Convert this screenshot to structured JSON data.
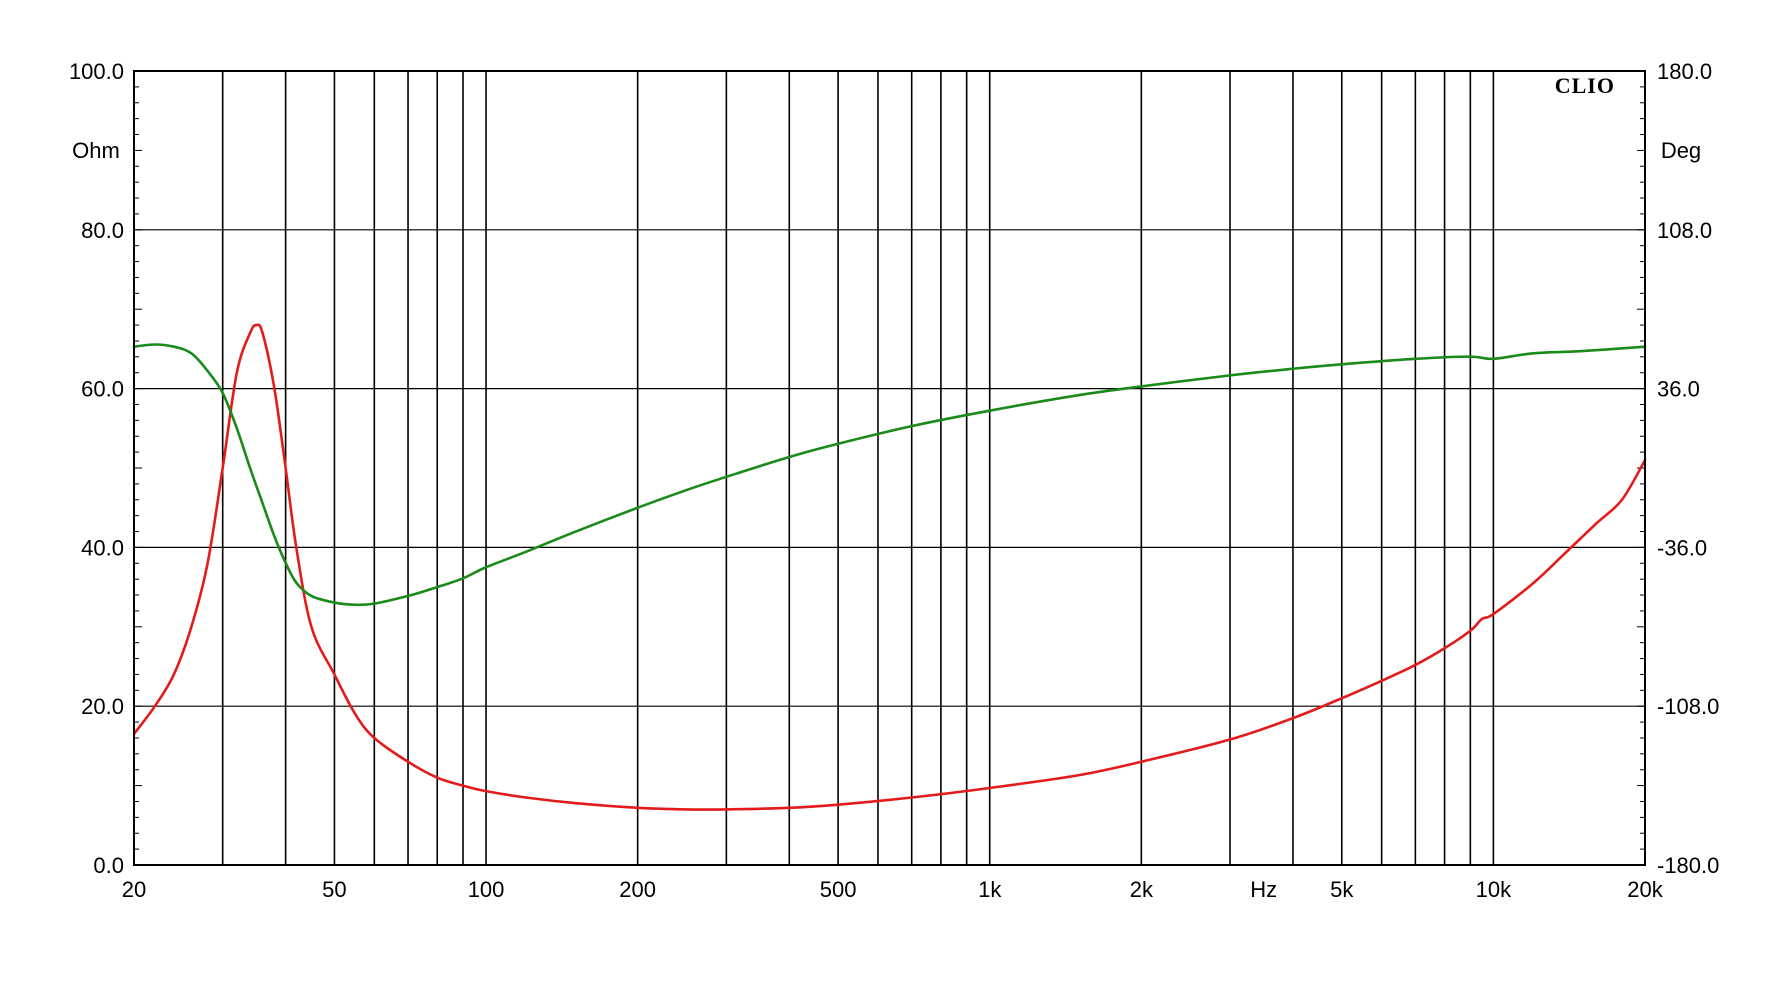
{
  "chart_data": {
    "type": "line",
    "brand": "CLIO",
    "x_scale": "log",
    "xlim": [
      20,
      20000
    ],
    "x_unit_label": "Hz",
    "x_tick_labels": [
      {
        "value": 20,
        "label": "20"
      },
      {
        "value": 50,
        "label": "50"
      },
      {
        "value": 100,
        "label": "100"
      },
      {
        "value": 200,
        "label": "200"
      },
      {
        "value": 500,
        "label": "500"
      },
      {
        "value": 1000,
        "label": "1k"
      },
      {
        "value": 2000,
        "label": "2k"
      },
      {
        "value": 5000,
        "label": "5k"
      },
      {
        "value": 10000,
        "label": "10k"
      },
      {
        "value": 20000,
        "label": "20k"
      }
    ],
    "x_unit_position_value": 3500,
    "x_gridlines": [
      20,
      30,
      40,
      50,
      60,
      70,
      80,
      90,
      100,
      200,
      300,
      400,
      500,
      600,
      700,
      800,
      900,
      1000,
      2000,
      3000,
      4000,
      5000,
      6000,
      7000,
      8000,
      9000,
      10000,
      20000
    ],
    "y_left": {
      "label": "Ohm",
      "range": [
        0,
        100
      ],
      "ticks": [
        "0.0",
        "20.0",
        "40.0",
        "60.0",
        "80.0",
        "100.0"
      ],
      "tick_values": [
        0,
        20,
        40,
        60,
        80,
        100
      ]
    },
    "y_right": {
      "label": "Deg",
      "range": [
        -180,
        180
      ],
      "ticks": [
        "-180.0",
        "-108.0",
        "-36.0",
        "36.0",
        "108.0",
        "180.0"
      ],
      "tick_values": [
        -180,
        -108,
        -36,
        36,
        108,
        180
      ]
    },
    "grid": true,
    "series": [
      {
        "axis": "left",
        "color": "#e31b1b",
        "points": [
          [
            20,
            16.5
          ],
          [
            22,
            20
          ],
          [
            24,
            24
          ],
          [
            26,
            30
          ],
          [
            28,
            38
          ],
          [
            30,
            50
          ],
          [
            32,
            62
          ],
          [
            34,
            67
          ],
          [
            35,
            68
          ],
          [
            36,
            67
          ],
          [
            38,
            60
          ],
          [
            40,
            50
          ],
          [
            42,
            40
          ],
          [
            45,
            30
          ],
          [
            50,
            24
          ],
          [
            55,
            19
          ],
          [
            60,
            16
          ],
          [
            70,
            13
          ],
          [
            80,
            11
          ],
          [
            90,
            10
          ],
          [
            100,
            9.3
          ],
          [
            120,
            8.5
          ],
          [
            150,
            7.8
          ],
          [
            200,
            7.2
          ],
          [
            250,
            7.0
          ],
          [
            300,
            7.0
          ],
          [
            400,
            7.2
          ],
          [
            500,
            7.6
          ],
          [
            700,
            8.5
          ],
          [
            1000,
            9.7
          ],
          [
            1500,
            11.3
          ],
          [
            2000,
            13.0
          ],
          [
            3000,
            15.8
          ],
          [
            4000,
            18.5
          ],
          [
            5000,
            21.0
          ],
          [
            6000,
            23.2
          ],
          [
            7000,
            25.2
          ],
          [
            8000,
            27.3
          ],
          [
            9000,
            29.5
          ],
          [
            9500,
            31.0
          ],
          [
            10000,
            31.6
          ],
          [
            12000,
            35.5
          ],
          [
            14000,
            39.5
          ],
          [
            16000,
            43.0
          ],
          [
            18000,
            46.0
          ],
          [
            20000,
            51.0
          ]
        ]
      },
      {
        "axis": "right",
        "color": "#1a8a1a",
        "points": [
          [
            20,
            55
          ],
          [
            22,
            56
          ],
          [
            24,
            55
          ],
          [
            26,
            52
          ],
          [
            28,
            44
          ],
          [
            30,
            34
          ],
          [
            32,
            18
          ],
          [
            34,
            0
          ],
          [
            36,
            -16
          ],
          [
            38,
            -31
          ],
          [
            40,
            -43
          ],
          [
            42,
            -52
          ],
          [
            45,
            -58
          ],
          [
            50,
            -61
          ],
          [
            55,
            -62
          ],
          [
            60,
            -61.5
          ],
          [
            70,
            -58
          ],
          [
            80,
            -54
          ],
          [
            90,
            -50
          ],
          [
            100,
            -45
          ],
          [
            120,
            -38
          ],
          [
            150,
            -29
          ],
          [
            200,
            -18
          ],
          [
            250,
            -10
          ],
          [
            300,
            -4
          ],
          [
            400,
            5
          ],
          [
            500,
            11
          ],
          [
            700,
            19
          ],
          [
            1000,
            26
          ],
          [
            1500,
            33
          ],
          [
            2000,
            37
          ],
          [
            3000,
            42
          ],
          [
            4000,
            45
          ],
          [
            5000,
            47
          ],
          [
            7000,
            49.5
          ],
          [
            9000,
            50.5
          ],
          [
            10000,
            49.5
          ],
          [
            12000,
            52
          ],
          [
            15000,
            53
          ],
          [
            20000,
            55
          ]
        ]
      }
    ]
  }
}
